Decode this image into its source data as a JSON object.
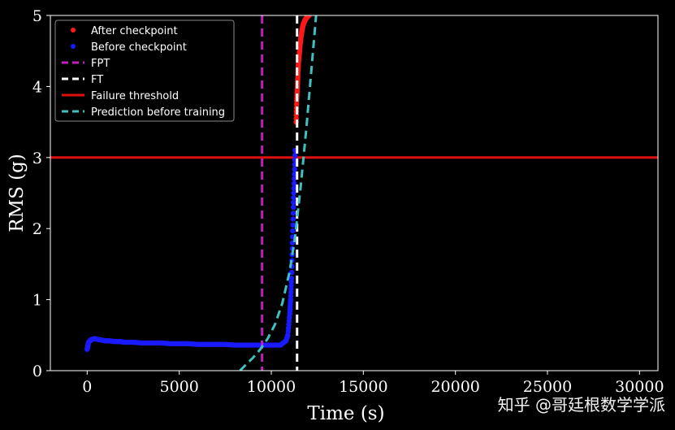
{
  "chart_data": {
    "type": "scatter",
    "title": "",
    "xlabel": "Time (s)",
    "ylabel": "RMS (g)",
    "xlim": [
      -2000,
      31000
    ],
    "ylim": [
      0,
      5
    ],
    "xticks": [
      0,
      5000,
      10000,
      15000,
      20000,
      25000,
      30000
    ],
    "xtick_labels": [
      "0",
      "5000",
      "10000",
      "15000",
      "20000",
      "25000",
      "30000"
    ],
    "yticks": [
      0,
      1,
      2,
      3,
      4,
      5
    ],
    "ytick_labels": [
      "0",
      "1",
      "2",
      "3",
      "4",
      "5"
    ],
    "grid": false,
    "legend_position": "top-left",
    "series": [
      {
        "name": "After checkpoint",
        "kind": "scatter",
        "color": "#ff1a1a",
        "x": [
          11350,
          11380,
          11420,
          11450,
          11480,
          11520,
          11550,
          11580,
          11600,
          11630,
          11660,
          11690,
          11720,
          11750,
          11780,
          11810,
          11840,
          11870,
          11900,
          11930,
          11960,
          11990,
          12020,
          12050
        ],
        "y": [
          3.5,
          3.8,
          4.0,
          4.2,
          4.35,
          4.45,
          4.55,
          4.62,
          4.68,
          4.72,
          4.78,
          4.82,
          4.86,
          4.88,
          4.9,
          4.92,
          4.94,
          4.95,
          4.96,
          4.97,
          4.98,
          4.99,
          5.0,
          5.0
        ]
      },
      {
        "name": "Before checkpoint",
        "kind": "scatter",
        "color": "#1a1aff",
        "x": [
          0,
          40,
          80,
          150,
          250,
          400,
          600,
          800,
          1000,
          1200,
          1500,
          1800,
          2000,
          2500,
          3000,
          3500,
          4000,
          4500,
          5000,
          5500,
          6000,
          6500,
          7000,
          7500,
          8000,
          8500,
          9000,
          9500,
          10000,
          10500,
          10800,
          10900,
          11000,
          11050,
          11100,
          11150,
          11200,
          11250,
          11300
        ],
        "y": [
          0.3,
          0.35,
          0.4,
          0.42,
          0.44,
          0.45,
          0.44,
          0.43,
          0.42,
          0.42,
          0.41,
          0.41,
          0.4,
          0.4,
          0.39,
          0.39,
          0.39,
          0.38,
          0.38,
          0.38,
          0.37,
          0.37,
          0.37,
          0.37,
          0.36,
          0.36,
          0.36,
          0.36,
          0.36,
          0.36,
          0.42,
          0.5,
          0.8,
          1.0,
          1.3,
          1.8,
          2.3,
          2.7,
          3.1
        ]
      },
      {
        "name": "FPT",
        "kind": "vline",
        "color": "#c020c0",
        "x": 9500
      },
      {
        "name": "FT",
        "kind": "vline",
        "color": "#ffffff",
        "x": 11400
      },
      {
        "name": "Failure threshold",
        "kind": "hline",
        "color": "#e01010",
        "y": 3.0
      },
      {
        "name": "Prediction before training",
        "kind": "curve",
        "color": "#40c0c0",
        "x": [
          8300,
          8600,
          9000,
          9400,
          9800,
          10200,
          10600,
          11000,
          11300,
          11600,
          11900,
          12200,
          12500
        ],
        "y": [
          0.0,
          0.08,
          0.18,
          0.3,
          0.45,
          0.65,
          0.95,
          1.4,
          1.9,
          2.6,
          3.4,
          4.3,
          5.2
        ]
      }
    ]
  },
  "watermark": {
    "text": "知乎 @哥廷根数学学派"
  }
}
